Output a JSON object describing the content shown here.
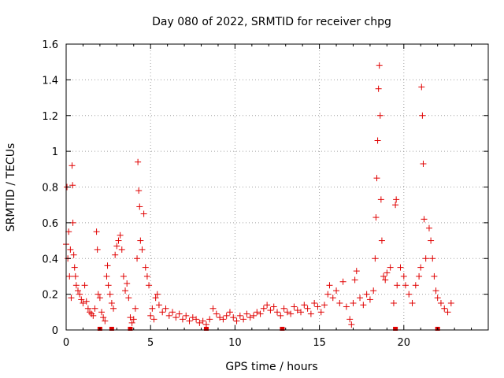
{
  "chart_data": {
    "type": "scatter",
    "title": "Day 080 of 2022, SRMTID for receiver chpg",
    "xlabel": "GPS time / hours",
    "ylabel": "SRMTID / TECUs",
    "xlim": [
      0,
      25
    ],
    "ylim": [
      0,
      1.6
    ],
    "xticks": [
      0,
      5,
      10,
      15,
      20
    ],
    "xtick_labels": [
      "0",
      "5",
      "10",
      "15",
      "20"
    ],
    "yticks": [
      0,
      0.2,
      0.4,
      0.6,
      0.8,
      1,
      1.2,
      1.4,
      1.6
    ],
    "ytick_labels": [
      "0",
      "0.2",
      "0.4",
      "0.6",
      "0.8",
      "1",
      "1.2",
      "1.4",
      "1.6"
    ],
    "grid": true,
    "marker": "+",
    "color": "#e00000",
    "series": [
      {
        "name": "SRMTID",
        "points": [
          [
            0.0,
            0.48
          ],
          [
            0.05,
            0.8
          ],
          [
            0.1,
            0.4
          ],
          [
            0.15,
            0.55
          ],
          [
            0.2,
            0.3
          ],
          [
            0.25,
            0.45
          ],
          [
            0.3,
            0.18
          ],
          [
            0.35,
            0.92
          ],
          [
            0.38,
            0.81
          ],
          [
            0.4,
            0.6
          ],
          [
            0.45,
            0.42
          ],
          [
            0.5,
            0.35
          ],
          [
            0.55,
            0.3
          ],
          [
            0.6,
            0.25
          ],
          [
            0.7,
            0.22
          ],
          [
            0.8,
            0.2
          ],
          [
            0.9,
            0.17
          ],
          [
            1.0,
            0.15
          ],
          [
            1.1,
            0.25
          ],
          [
            1.2,
            0.16
          ],
          [
            1.3,
            0.12
          ],
          [
            1.4,
            0.1
          ],
          [
            1.5,
            0.09
          ],
          [
            1.6,
            0.08
          ],
          [
            1.7,
            0.12
          ],
          [
            1.8,
            0.55
          ],
          [
            1.85,
            0.45
          ],
          [
            1.9,
            0.2
          ],
          [
            2.0,
            0.18
          ],
          [
            2.1,
            0.1
          ],
          [
            2.2,
            0.07
          ],
          [
            2.3,
            0.05
          ],
          [
            2.4,
            0.3
          ],
          [
            2.45,
            0.36
          ],
          [
            2.5,
            0.25
          ],
          [
            2.6,
            0.2
          ],
          [
            2.7,
            0.15
          ],
          [
            2.8,
            0.12
          ],
          [
            2.9,
            0.42
          ],
          [
            3.0,
            0.47
          ],
          [
            3.1,
            0.5
          ],
          [
            3.2,
            0.53
          ],
          [
            3.3,
            0.45
          ],
          [
            3.4,
            0.3
          ],
          [
            3.5,
            0.22
          ],
          [
            3.6,
            0.26
          ],
          [
            3.7,
            0.18
          ],
          [
            3.8,
            0.07
          ],
          [
            3.9,
            0.04
          ],
          [
            4.0,
            0.06
          ],
          [
            4.1,
            0.12
          ],
          [
            4.2,
            0.4
          ],
          [
            4.25,
            0.94
          ],
          [
            4.3,
            0.78
          ],
          [
            4.35,
            0.69
          ],
          [
            4.4,
            0.5
          ],
          [
            4.5,
            0.45
          ],
          [
            4.6,
            0.65
          ],
          [
            4.7,
            0.35
          ],
          [
            4.8,
            0.3
          ],
          [
            4.9,
            0.25
          ],
          [
            5.0,
            0.08
          ],
          [
            5.1,
            0.12
          ],
          [
            5.2,
            0.06
          ],
          [
            5.3,
            0.18
          ],
          [
            5.4,
            0.2
          ],
          [
            5.5,
            0.14
          ],
          [
            5.7,
            0.1
          ],
          [
            5.9,
            0.12
          ],
          [
            6.1,
            0.08
          ],
          [
            6.3,
            0.1
          ],
          [
            6.5,
            0.07
          ],
          [
            6.7,
            0.09
          ],
          [
            6.9,
            0.06
          ],
          [
            7.1,
            0.08
          ],
          [
            7.3,
            0.05
          ],
          [
            7.5,
            0.07
          ],
          [
            7.7,
            0.06
          ],
          [
            7.9,
            0.04
          ],
          [
            8.1,
            0.05
          ],
          [
            8.3,
            0.03
          ],
          [
            8.5,
            0.06
          ],
          [
            8.7,
            0.12
          ],
          [
            8.9,
            0.09
          ],
          [
            9.1,
            0.07
          ],
          [
            9.3,
            0.06
          ],
          [
            9.5,
            0.08
          ],
          [
            9.7,
            0.1
          ],
          [
            9.9,
            0.07
          ],
          [
            10.1,
            0.05
          ],
          [
            10.3,
            0.08
          ],
          [
            10.5,
            0.06
          ],
          [
            10.7,
            0.09
          ],
          [
            10.9,
            0.07
          ],
          [
            11.1,
            0.08
          ],
          [
            11.3,
            0.1
          ],
          [
            11.5,
            0.09
          ],
          [
            11.7,
            0.12
          ],
          [
            11.9,
            0.14
          ],
          [
            12.1,
            0.11
          ],
          [
            12.3,
            0.13
          ],
          [
            12.5,
            0.1
          ],
          [
            12.7,
            0.08
          ],
          [
            12.9,
            0.12
          ],
          [
            13.1,
            0.1
          ],
          [
            13.3,
            0.09
          ],
          [
            13.5,
            0.13
          ],
          [
            13.7,
            0.11
          ],
          [
            13.9,
            0.1
          ],
          [
            14.1,
            0.14
          ],
          [
            14.3,
            0.12
          ],
          [
            14.5,
            0.09
          ],
          [
            14.7,
            0.15
          ],
          [
            14.9,
            0.13
          ],
          [
            15.1,
            0.1
          ],
          [
            15.3,
            0.14
          ],
          [
            15.5,
            0.2
          ],
          [
            15.6,
            0.25
          ],
          [
            15.8,
            0.18
          ],
          [
            16.0,
            0.22
          ],
          [
            16.2,
            0.15
          ],
          [
            16.4,
            0.27
          ],
          [
            16.6,
            0.13
          ],
          [
            16.8,
            0.06
          ],
          [
            16.9,
            0.03
          ],
          [
            17.0,
            0.15
          ],
          [
            17.1,
            0.28
          ],
          [
            17.2,
            0.33
          ],
          [
            17.4,
            0.18
          ],
          [
            17.6,
            0.14
          ],
          [
            17.8,
            0.2
          ],
          [
            18.0,
            0.17
          ],
          [
            18.2,
            0.22
          ],
          [
            18.3,
            0.4
          ],
          [
            18.35,
            0.63
          ],
          [
            18.4,
            0.85
          ],
          [
            18.45,
            1.06
          ],
          [
            18.5,
            1.35
          ],
          [
            18.55,
            1.48
          ],
          [
            18.6,
            1.2
          ],
          [
            18.65,
            0.73
          ],
          [
            18.7,
            0.5
          ],
          [
            18.8,
            0.3
          ],
          [
            18.9,
            0.28
          ],
          [
            19.0,
            0.32
          ],
          [
            19.2,
            0.35
          ],
          [
            19.4,
            0.15
          ],
          [
            19.5,
            0.7
          ],
          [
            19.55,
            0.73
          ],
          [
            19.6,
            0.25
          ],
          [
            19.8,
            0.35
          ],
          [
            20.0,
            0.3
          ],
          [
            20.1,
            0.25
          ],
          [
            20.3,
            0.2
          ],
          [
            20.5,
            0.15
          ],
          [
            20.7,
            0.25
          ],
          [
            20.9,
            0.3
          ],
          [
            21.0,
            0.35
          ],
          [
            21.05,
            1.36
          ],
          [
            21.1,
            1.2
          ],
          [
            21.15,
            0.93
          ],
          [
            21.2,
            0.62
          ],
          [
            21.3,
            0.4
          ],
          [
            21.5,
            0.57
          ],
          [
            21.6,
            0.5
          ],
          [
            21.7,
            0.4
          ],
          [
            21.8,
            0.3
          ],
          [
            21.9,
            0.22
          ],
          [
            22.0,
            0.18
          ],
          [
            22.2,
            0.15
          ],
          [
            22.4,
            0.12
          ],
          [
            22.6,
            0.1
          ],
          [
            22.8,
            0.15
          ]
        ]
      }
    ],
    "gaps": [
      [
        2.0,
        0.0
      ],
      [
        2.7,
        0.0
      ],
      [
        3.8,
        0.0
      ],
      [
        8.3,
        0.0
      ],
      [
        12.8,
        0.0
      ],
      [
        19.5,
        0.0
      ],
      [
        22.0,
        0.0
      ]
    ]
  }
}
